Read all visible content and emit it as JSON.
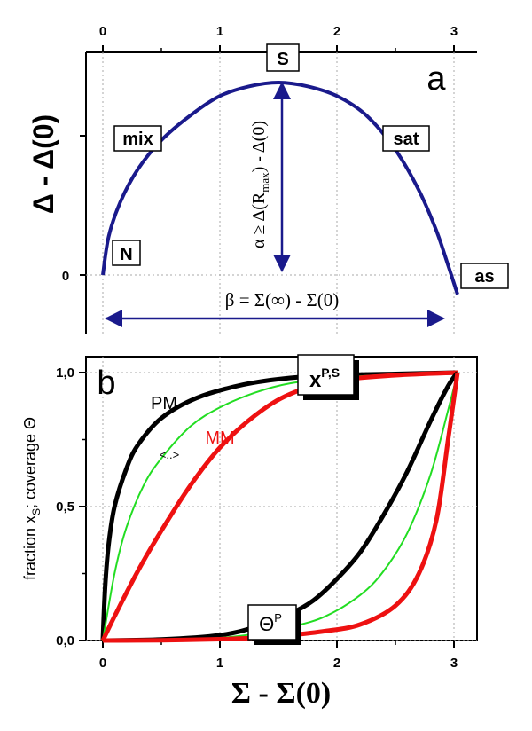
{
  "chart_data": [
    {
      "panel": "a",
      "type": "line",
      "panel_label": "a",
      "xlabel": "",
      "ylabel": "Δ - Δ(0)",
      "xlim": [
        -0.1,
        3.15
      ],
      "top_ticks": [
        "0",
        "1",
        "2",
        "3"
      ],
      "y_tick_label": "0",
      "series": [
        {
          "color": "#1a1a8c",
          "x": [
            0,
            0.05,
            0.15,
            0.3,
            0.5,
            0.75,
            1.0,
            1.25,
            1.5,
            1.75,
            2.0,
            2.25,
            2.5,
            2.7,
            2.85,
            2.95,
            3.03
          ],
          "y": [
            0.0,
            0.2,
            0.38,
            0.55,
            0.7,
            0.83,
            0.93,
            0.98,
            1.0,
            0.98,
            0.93,
            0.83,
            0.65,
            0.44,
            0.23,
            0.05,
            -0.1
          ]
        }
      ],
      "labels": {
        "N": "N",
        "mix": "mix",
        "S": "S",
        "sat": "sat",
        "as": "as"
      },
      "alpha_text": "α ≥  Δ(R",
      "alpha_sub": "max",
      "alpha_tail": ") - Δ(0)",
      "beta_text": "β = Σ(∞) - Σ(0)"
    },
    {
      "panel": "b",
      "type": "line",
      "panel_label": "b",
      "xlabel": "Σ - Σ(0)",
      "ylabel_main": "fraction x",
      "ylabel_sub": "S",
      "ylabel_tail": "; coverage Θ",
      "xlim": [
        -0.1,
        3.15
      ],
      "ylim": [
        0,
        1.05
      ],
      "x_ticks": [
        "0",
        "1",
        "2",
        "3"
      ],
      "y_ticks": [
        "0,0",
        "0,5",
        "1,0"
      ],
      "series_labels": {
        "pm": "PM",
        "mm": "MM",
        "mid": "<..>"
      },
      "xps_base": "x",
      "xps_sup": "P,S",
      "theta_base": "Θ",
      "theta_sup": "P",
      "series": [
        {
          "color": "#000000",
          "x": [
            0,
            0.02,
            0.05,
            0.1,
            0.2,
            0.3,
            0.5,
            0.8,
            1.2,
            1.6,
            2.0,
            2.5,
            3.03
          ],
          "y": [
            0,
            0.2,
            0.36,
            0.5,
            0.64,
            0.73,
            0.83,
            0.905,
            0.955,
            0.98,
            0.99,
            0.995,
            1.0
          ]
        },
        {
          "color": "#22dd22",
          "x": [
            0,
            0.1,
            0.2,
            0.35,
            0.5,
            0.75,
            1.0,
            1.3,
            1.6,
            2.0,
            2.5,
            3.03
          ],
          "y": [
            0,
            0.25,
            0.42,
            0.58,
            0.68,
            0.8,
            0.87,
            0.925,
            0.96,
            0.98,
            0.993,
            1.0
          ]
        },
        {
          "color": "#ee1111",
          "x": [
            0,
            0.1,
            0.3,
            0.5,
            0.75,
            1.0,
            1.3,
            1.6,
            2.0,
            2.5,
            3.03
          ],
          "y": [
            0,
            0.09,
            0.26,
            0.41,
            0.58,
            0.72,
            0.84,
            0.92,
            0.97,
            0.99,
            1.0
          ]
        },
        {
          "color": "#000000",
          "x": [
            0,
            0.5,
            1.0,
            1.3,
            1.6,
            1.8,
            2.0,
            2.2,
            2.4,
            2.6,
            2.8,
            2.95,
            3.03
          ],
          "y": [
            0,
            0.004,
            0.02,
            0.05,
            0.1,
            0.15,
            0.23,
            0.33,
            0.47,
            0.63,
            0.82,
            0.95,
            1.0
          ]
        },
        {
          "color": "#22dd22",
          "x": [
            0,
            0.5,
            1.0,
            1.3,
            1.6,
            1.9,
            2.2,
            2.4,
            2.6,
            2.8,
            2.95,
            3.03
          ],
          "y": [
            0,
            0.002,
            0.01,
            0.025,
            0.05,
            0.09,
            0.17,
            0.26,
            0.4,
            0.62,
            0.86,
            1.0
          ]
        },
        {
          "color": "#ee1111",
          "x": [
            0,
            0.5,
            1.0,
            1.3,
            1.6,
            1.9,
            2.2,
            2.5,
            2.7,
            2.85,
            2.95,
            3.03
          ],
          "y": [
            0,
            0.001,
            0.005,
            0.01,
            0.02,
            0.035,
            0.06,
            0.13,
            0.25,
            0.45,
            0.75,
            1.0
          ]
        }
      ]
    }
  ]
}
